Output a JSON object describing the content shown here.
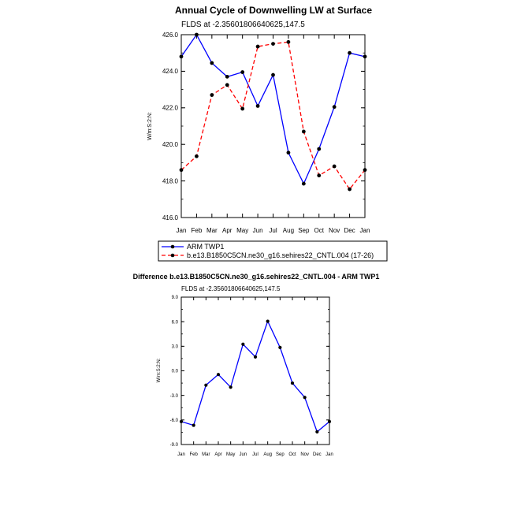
{
  "chart_data": [
    {
      "type": "line",
      "title": "Annual Cycle of Downwelling LW at Surface",
      "subtitle": "FLDS at -2.35601806640625,147.5",
      "ylabel": "W/m:S:2:N:",
      "xlabel": "",
      "categories": [
        "Jan",
        "Feb",
        "Mar",
        "Apr",
        "May",
        "Jun",
        "Jul",
        "Aug",
        "Sep",
        "Oct",
        "Nov",
        "Dec",
        "Jan"
      ],
      "ylim": [
        416.0,
        426.0
      ],
      "yticks": [
        "416.0",
        "418.0",
        "420.0",
        "422.0",
        "424.0",
        "426.0"
      ],
      "yticks_values": [
        416.0,
        418.0,
        420.0,
        422.0,
        424.0,
        426.0
      ],
      "series": [
        {
          "name": "ARM TWP1",
          "color": "#0000ff",
          "dash": "solid",
          "values": [
            424.8,
            426.0,
            424.45,
            423.7,
            423.95,
            422.1,
            423.8,
            419.55,
            417.85,
            419.75,
            422.05,
            425.0,
            424.8
          ]
        },
        {
          "name": "b.e13.B1850C5CN.ne30_g16.sehires22_CNTL.004 (17-26)",
          "color": "#ff0000",
          "dash": "dashed",
          "values": [
            418.6,
            419.35,
            422.7,
            423.25,
            421.95,
            425.35,
            425.5,
            425.6,
            420.7,
            418.3,
            418.8,
            417.55,
            418.6
          ]
        }
      ],
      "legend": "bottom"
    },
    {
      "type": "line",
      "title": "Difference b.e13.B1850C5CN.ne30_g16.sehires22_CNTL.004 - ARM TWP1",
      "subtitle": "FLDS at -2.35601806640625,147.5",
      "ylabel": "W/m:S:2:N:",
      "xlabel": "",
      "categories": [
        "Jan",
        "Feb",
        "Mar",
        "Apr",
        "May",
        "Jun",
        "Jul",
        "Aug",
        "Sep",
        "Oct",
        "Nov",
        "Dec",
        "Jan"
      ],
      "ylim": [
        -9.0,
        9.0
      ],
      "yticks": [
        "-9.0",
        "-6.0",
        "-3.0",
        "0.0",
        "3.0",
        "6.0",
        "9.0"
      ],
      "yticks_values": [
        -9.0,
        -6.0,
        -3.0,
        0.0,
        3.0,
        6.0,
        9.0
      ],
      "series": [
        {
          "name": "Difference",
          "color": "#0000ff",
          "dash": "solid",
          "values": [
            -6.2,
            -6.65,
            -1.75,
            -0.45,
            -2.0,
            3.25,
            1.7,
            6.05,
            2.85,
            -1.5,
            -3.25,
            -7.45,
            -6.2
          ]
        }
      ]
    }
  ]
}
